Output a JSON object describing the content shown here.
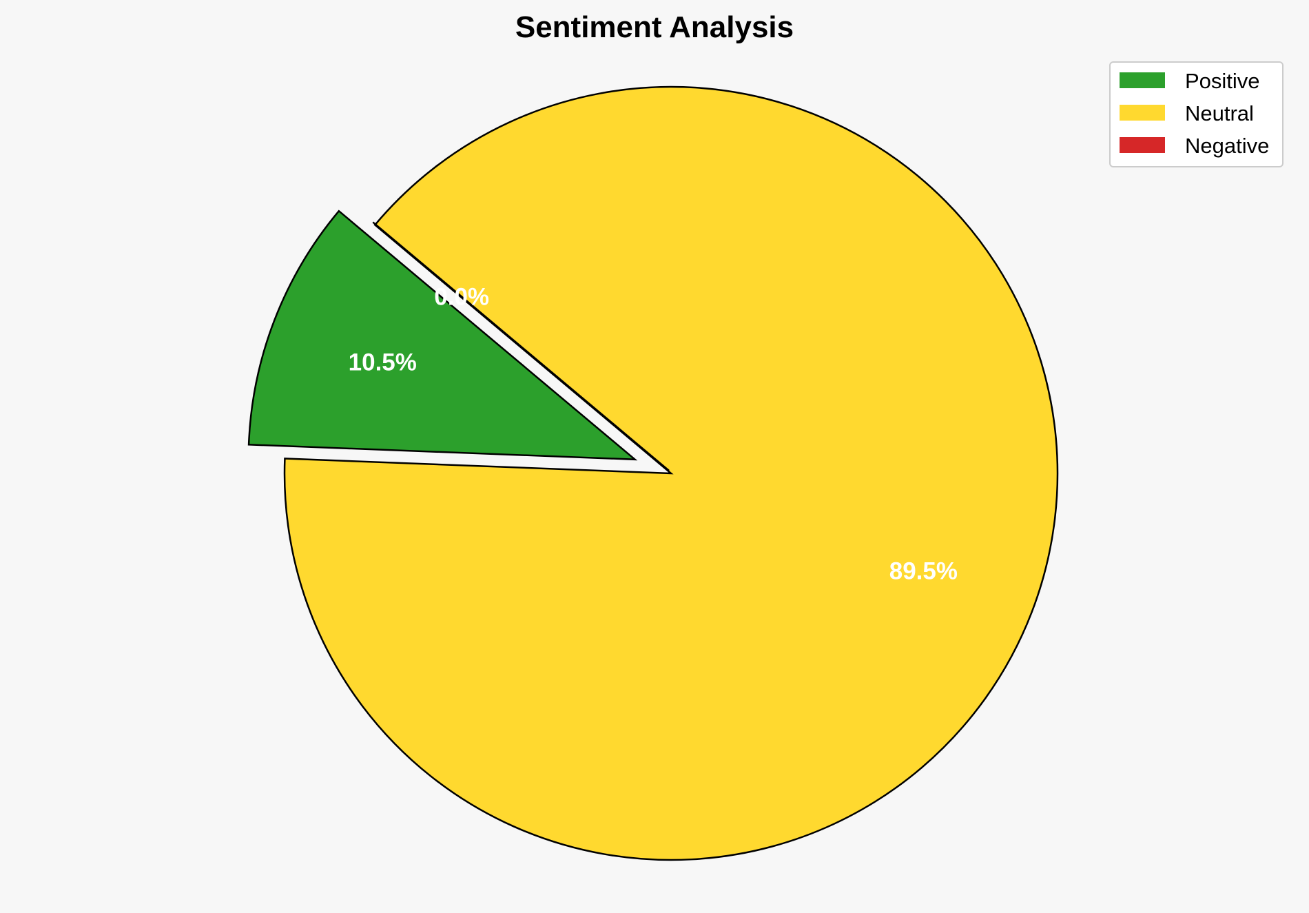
{
  "chart_data": {
    "type": "pie",
    "title": "Sentiment Analysis",
    "categories": [
      "Positive",
      "Neutral",
      "Negative"
    ],
    "values": [
      10.5,
      89.5,
      0.0
    ],
    "labels": [
      "10.5%",
      "89.5%",
      "0.0%"
    ],
    "colors": [
      "#2ca02c",
      "#ffd92f",
      "#d62728"
    ],
    "explode": [
      0.1,
      0,
      0.1
    ],
    "start_angle": 140,
    "legend_placement": "top-right"
  }
}
